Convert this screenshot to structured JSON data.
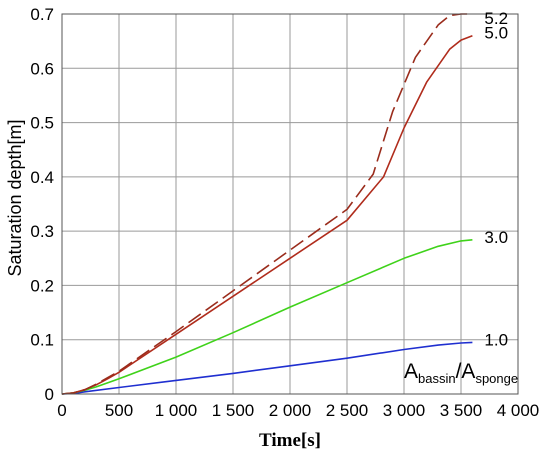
{
  "chart_data": {
    "type": "line",
    "title": "",
    "xlabel": "Time[s]",
    "ylabel": "Saturation depth[m]",
    "xlim": [
      0,
      4000
    ],
    "ylim": [
      0,
      0.7
    ],
    "x_ticks": [
      "0",
      "500",
      "1 000",
      "1 500",
      "2 000",
      "2 500",
      "3 000",
      "3 500",
      "4 000"
    ],
    "y_ticks": [
      "0",
      "0.1",
      "0.2",
      "0.3",
      "0.4",
      "0.5",
      "0.6",
      "0.7"
    ],
    "grid": true,
    "annotation": {
      "main": "A",
      "sub1": "bassin",
      "slash": "/A",
      "sub2": "sponge"
    },
    "series": [
      {
        "name": "1.0",
        "color": "#1f2fd0",
        "dash": false,
        "x": [
          0,
          100,
          200,
          500,
          1000,
          1500,
          2000,
          2500,
          3000,
          3300,
          3500,
          3600
        ],
        "y": [
          0,
          0.001,
          0.004,
          0.012,
          0.025,
          0.038,
          0.052,
          0.066,
          0.082,
          0.09,
          0.094,
          0.095
        ]
      },
      {
        "name": "3.0",
        "color": "#3fd21a",
        "dash": false,
        "x": [
          0,
          100,
          200,
          300,
          500,
          1000,
          1500,
          2000,
          2500,
          3000,
          3300,
          3500,
          3600
        ],
        "y": [
          0,
          0.002,
          0.007,
          0.013,
          0.028,
          0.068,
          0.113,
          0.16,
          0.205,
          0.25,
          0.272,
          0.282,
          0.284
        ]
      },
      {
        "name": "5.0",
        "color": "#b02c1c",
        "dash": false,
        "x": [
          0,
          100,
          200,
          300,
          400,
          500,
          1000,
          1500,
          2000,
          2500,
          2820,
          3000,
          3200,
          3400,
          3500,
          3600
        ],
        "y": [
          0,
          0.002,
          0.008,
          0.017,
          0.028,
          0.04,
          0.11,
          0.18,
          0.25,
          0.32,
          0.4,
          0.49,
          0.575,
          0.635,
          0.652,
          0.66
        ]
      },
      {
        "name": "5.2",
        "color": "#9a2c1c",
        "dash": true,
        "x": [
          0,
          100,
          200,
          300,
          400,
          500,
          1000,
          1500,
          2000,
          2500,
          2730,
          2900,
          3100,
          3300,
          3400,
          3500,
          3600
        ],
        "y": [
          0,
          0.002,
          0.008,
          0.018,
          0.03,
          0.042,
          0.115,
          0.19,
          0.265,
          0.34,
          0.405,
          0.52,
          0.62,
          0.68,
          0.697,
          0.7,
          0.7
        ]
      }
    ]
  }
}
